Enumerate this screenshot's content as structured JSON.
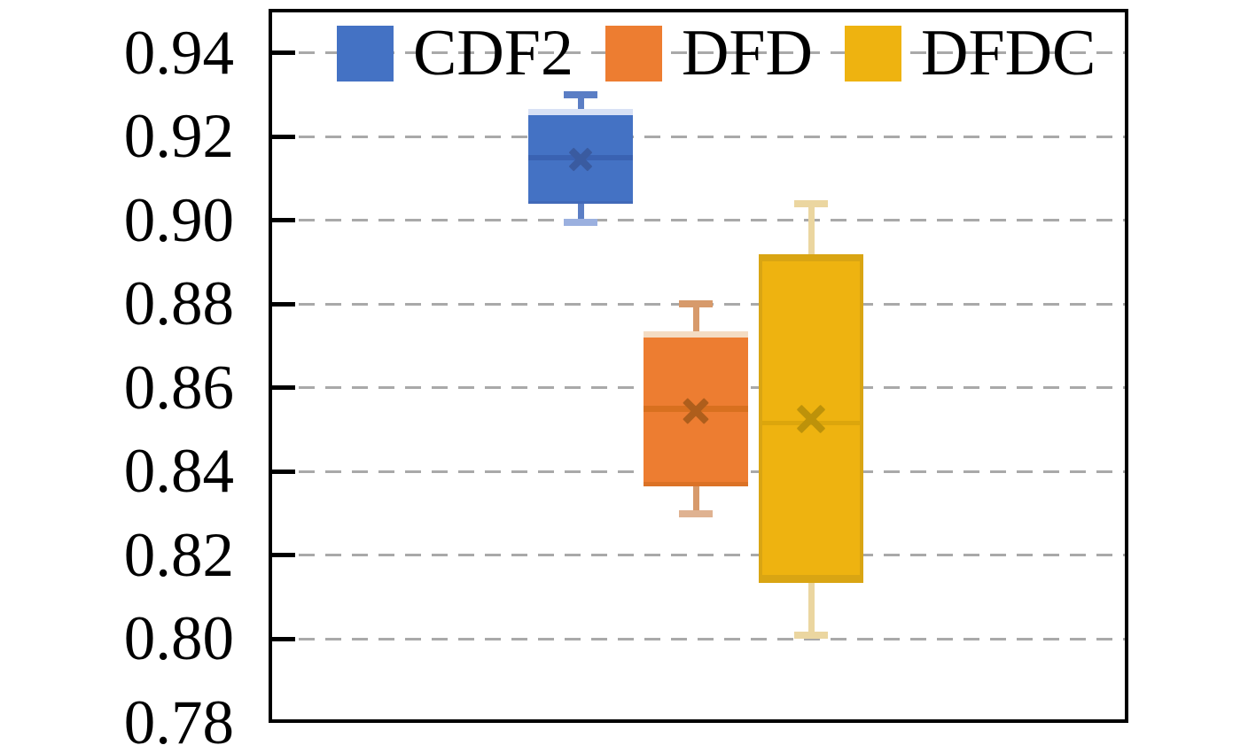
{
  "figure": {
    "background": "#ffffff",
    "axis_color": "#000000",
    "gridline_color": "#a9a9a9"
  },
  "chart_data": {
    "type": "boxplot",
    "title": "",
    "xlabel": "",
    "ylabel": "",
    "ylim": [
      0.78,
      0.9505
    ],
    "yticks": [
      "0.94",
      "0.92",
      "0.90",
      "0.88",
      "0.86",
      "0.84",
      "0.82",
      "0.80",
      "0.78"
    ],
    "ytick_values": [
      0.94,
      0.92,
      0.9,
      0.88,
      0.86,
      0.84,
      0.82,
      0.8,
      0.78
    ],
    "grid": "horizontal-dashed",
    "legend_position": "top-inside",
    "series": [
      {
        "name": "CDF2",
        "stats": {
          "whisker_low": 0.8995,
          "q1": 0.904,
          "median": 0.915,
          "q3": 0.9265,
          "whisker_high": 0.93,
          "mean": 0.9145
        },
        "colors": {
          "fill": "#4472C4",
          "edge_top": "#D8E1F5",
          "edge_bottom": "#4169B8",
          "median": "#3A62B2",
          "whisker": "#5B7EC5",
          "cap_high": "#5B7EC5",
          "cap_low": "#9BB0DF",
          "mean": "#3A5BA0"
        }
      },
      {
        "name": "DFD",
        "stats": {
          "whisker_low": 0.83,
          "q1": 0.8365,
          "median": 0.855,
          "q3": 0.8735,
          "whisker_high": 0.88,
          "mean": 0.8545
        },
        "colors": {
          "fill": "#ED7D31",
          "edge_top": "#F4DCC3",
          "edge_bottom": "#DB7226",
          "median": "#D8701F",
          "whisker": "#D79A6B",
          "cap_high": "#D79A6B",
          "cap_low": "#DFB291",
          "mean": "#AE5E1C"
        }
      },
      {
        "name": "DFDC",
        "stats": {
          "whisker_low": 0.801,
          "q1": 0.8135,
          "median": 0.8515,
          "q3": 0.892,
          "whisker_high": 0.904,
          "mean": 0.8525
        },
        "colors": {
          "fill": "#EEB310",
          "edge_top": "#D9A513",
          "edge_bottom": "#D9A513",
          "side": "#D9A513",
          "median": "#DCA60C",
          "whisker": "#EBD6A0",
          "cap_high": "#EBD6A0",
          "cap_low": "#EBD6A0",
          "mean": "#BD920A"
        }
      }
    ]
  }
}
